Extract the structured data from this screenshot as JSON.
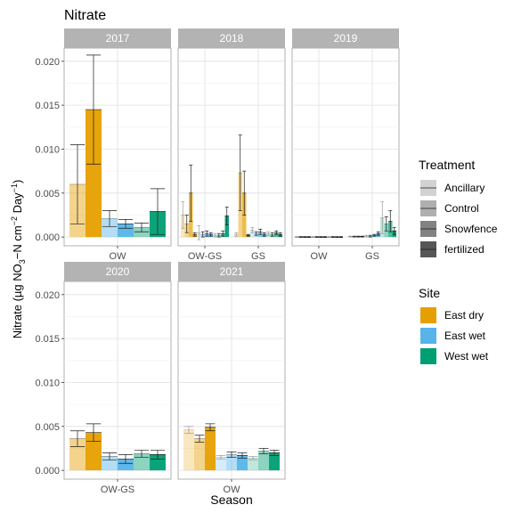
{
  "chart_data": {
    "type": "bar",
    "title": "Nitrate",
    "xlabel": "Season",
    "ylabel": {
      "prefix": "Nitrate (µg NO",
      "sub1": "3",
      "mid": "−N cm",
      "sup1": "−2",
      "mid2": " Day",
      "sup2": "−1",
      "suffix": ")"
    },
    "ylim": [
      -0.001,
      0.0215
    ],
    "y_ticks": [
      "0.000",
      "0.005",
      "0.010",
      "0.015",
      "0.020"
    ],
    "y_tick_values": [
      0,
      0.005,
      0.01,
      0.015,
      0.02
    ],
    "grid": true,
    "legend_placement": "right",
    "treatment_legend": {
      "title": "Treatment",
      "items": [
        {
          "label": "Ancillary",
          "alpha": 0.25
        },
        {
          "label": "Control",
          "alpha": 0.45
        },
        {
          "label": "Snowfence",
          "alpha": 0.7
        },
        {
          "label": "fertilized",
          "alpha": 0.95
        }
      ]
    },
    "site_legend": {
      "title": "Site",
      "items": [
        {
          "label": "East dry",
          "color": "#E69F00"
        },
        {
          "label": "East wet",
          "color": "#56B4E9"
        },
        {
          "label": "West wet",
          "color": "#009E73"
        }
      ]
    },
    "panels": [
      {
        "label": "2017",
        "seasons": [
          "OW"
        ],
        "groups": [
          {
            "season": "OW",
            "site": "East dry",
            "bars": [
              {
                "treatment": "Control",
                "value": 0.006,
                "err": 0.0045
              },
              {
                "treatment": "fertilized",
                "value": 0.0145,
                "err": 0.0062
              }
            ]
          },
          {
            "season": "OW",
            "site": "East wet",
            "bars": [
              {
                "treatment": "Control",
                "value": 0.0021,
                "err": 0.0009
              },
              {
                "treatment": "fertilized",
                "value": 0.0015,
                "err": 0.0005
              }
            ]
          },
          {
            "season": "OW",
            "site": "West wet",
            "bars": [
              {
                "treatment": "Control",
                "value": 0.0011,
                "err": 0.0005
              },
              {
                "treatment": "fertilized",
                "value": 0.0029,
                "err": 0.0026
              }
            ]
          }
        ]
      },
      {
        "label": "2018",
        "seasons": [
          "OW-GS",
          "GS"
        ],
        "groups": [
          {
            "season": "OW-GS",
            "site": "East dry",
            "bars": [
              {
                "treatment": "Ancillary",
                "value": 0.0025,
                "err": 0.0015
              },
              {
                "treatment": "Control",
                "value": 0.0015,
                "err": 0.001
              },
              {
                "treatment": "Snowfence",
                "value": 0.005,
                "err": 0.0032
              },
              {
                "treatment": "fertilized",
                "value": 0.0003,
                "err": 0.0002
              }
            ]
          },
          {
            "season": "OW-GS",
            "site": "East wet",
            "bars": [
              {
                "treatment": "Ancillary",
                "value": 0.0005,
                "err": 0.0008
              },
              {
                "treatment": "Control",
                "value": 0.0003,
                "err": 0.0003
              },
              {
                "treatment": "Snowfence",
                "value": 0.0004,
                "err": 0.0003
              },
              {
                "treatment": "fertilized",
                "value": 0.0003,
                "err": 0.0002
              }
            ]
          },
          {
            "season": "OW-GS",
            "site": "West wet",
            "bars": [
              {
                "treatment": "Ancillary",
                "value": 0.0002,
                "err": 0.0002
              },
              {
                "treatment": "Control",
                "value": 0.0002,
                "err": 0.0002
              },
              {
                "treatment": "Snowfence",
                "value": 0.0004,
                "err": 0.0003
              },
              {
                "treatment": "fertilized",
                "value": 0.0024,
                "err": 0.001
              }
            ]
          },
          {
            "season": "GS",
            "site": "East dry",
            "bars": [
              {
                "treatment": "Ancillary",
                "value": 0.0003,
                "err": 0.0002
              },
              {
                "treatment": "Control",
                "value": 0.0073,
                "err": 0.0043
              },
              {
                "treatment": "Snowfence",
                "value": 0.005,
                "err": 0.0025
              },
              {
                "treatment": "fertilized",
                "value": 0.0002,
                "err": 0.0001
              }
            ]
          },
          {
            "season": "GS",
            "site": "East wet",
            "bars": [
              {
                "treatment": "Ancillary",
                "value": 0.0008,
                "err": 0.0003
              },
              {
                "treatment": "Control",
                "value": 0.0004,
                "err": 0.0002
              },
              {
                "treatment": "Snowfence",
                "value": 0.0006,
                "err": 0.0003
              },
              {
                "treatment": "fertilized",
                "value": 0.0003,
                "err": 0.0002
              }
            ]
          },
          {
            "season": "GS",
            "site": "West wet",
            "bars": [
              {
                "treatment": "Ancillary",
                "value": 0.0004,
                "err": 0.0002
              },
              {
                "treatment": "Control",
                "value": 0.0003,
                "err": 0.0002
              },
              {
                "treatment": "Snowfence",
                "value": 0.0005,
                "err": 0.0002
              },
              {
                "treatment": "fertilized",
                "value": 0.0003,
                "err": 0.0002
              }
            ]
          }
        ]
      },
      {
        "label": "2019",
        "seasons": [
          "OW",
          "GS"
        ],
        "groups": [
          {
            "season": "OW",
            "site": "East dry",
            "bars": [
              {
                "treatment": "Ancillary",
                "value": 0.0,
                "err": 5e-05
              },
              {
                "treatment": "Control",
                "value": 0.0,
                "err": 5e-05
              },
              {
                "treatment": "Snowfence",
                "value": 0.0,
                "err": 5e-05
              },
              {
                "treatment": "fertilized",
                "value": 0.0,
                "err": 5e-05
              }
            ]
          },
          {
            "season": "OW",
            "site": "East wet",
            "bars": [
              {
                "treatment": "Ancillary",
                "value": 0.0,
                "err": 5e-05
              },
              {
                "treatment": "Control",
                "value": 0.0,
                "err": 5e-05
              },
              {
                "treatment": "Snowfence",
                "value": 0.0,
                "err": 5e-05
              },
              {
                "treatment": "fertilized",
                "value": 0.0,
                "err": 5e-05
              }
            ]
          },
          {
            "season": "OW",
            "site": "West wet",
            "bars": [
              {
                "treatment": "Ancillary",
                "value": 0.0,
                "err": 5e-05
              },
              {
                "treatment": "Control",
                "value": 0.0,
                "err": 5e-05
              },
              {
                "treatment": "Snowfence",
                "value": 0.0,
                "err": 5e-05
              },
              {
                "treatment": "fertilized",
                "value": 0.0,
                "err": 5e-05
              }
            ]
          },
          {
            "season": "GS",
            "site": "East dry",
            "bars": [
              {
                "treatment": "Ancillary",
                "value": 5e-05,
                "err": 5e-05
              },
              {
                "treatment": "Control",
                "value": 5e-05,
                "err": 5e-05
              },
              {
                "treatment": "Snowfence",
                "value": 5e-05,
                "err": 5e-05
              },
              {
                "treatment": "fertilized",
                "value": 5e-05,
                "err": 5e-05
              }
            ]
          },
          {
            "season": "GS",
            "site": "East wet",
            "bars": [
              {
                "treatment": "Ancillary",
                "value": 0.0001,
                "err": 0.0001
              },
              {
                "treatment": "Control",
                "value": 0.0001,
                "err": 0.0001
              },
              {
                "treatment": "Snowfence",
                "value": 0.0002,
                "err": 0.0001
              },
              {
                "treatment": "fertilized",
                "value": 0.0004,
                "err": 0.0002
              }
            ]
          },
          {
            "season": "GS",
            "site": "West wet",
            "bars": [
              {
                "treatment": "Ancillary",
                "value": 0.0022,
                "err": 0.0018
              },
              {
                "treatment": "Control",
                "value": 0.0015,
                "err": 0.0008
              },
              {
                "treatment": "Snowfence",
                "value": 0.0018,
                "err": 0.0012
              },
              {
                "treatment": "fertilized",
                "value": 0.0007,
                "err": 0.0004
              }
            ]
          }
        ]
      },
      {
        "label": "2020",
        "seasons": [
          "OW-GS"
        ],
        "groups": [
          {
            "season": "OW-GS",
            "site": "East dry",
            "bars": [
              {
                "treatment": "Control",
                "value": 0.0036,
                "err": 0.0009
              },
              {
                "treatment": "fertilized",
                "value": 0.0043,
                "err": 0.001
              }
            ]
          },
          {
            "season": "OW-GS",
            "site": "East wet",
            "bars": [
              {
                "treatment": "Control",
                "value": 0.0016,
                "err": 0.0004
              },
              {
                "treatment": "fertilized",
                "value": 0.0013,
                "err": 0.0005
              }
            ]
          },
          {
            "season": "OW-GS",
            "site": "West wet",
            "bars": [
              {
                "treatment": "Control",
                "value": 0.0019,
                "err": 0.0004
              },
              {
                "treatment": "fertilized",
                "value": 0.0018,
                "err": 0.0005
              }
            ]
          }
        ]
      },
      {
        "label": "2021",
        "seasons": [
          "OW"
        ],
        "groups": [
          {
            "season": "OW",
            "site": "East dry",
            "bars": [
              {
                "treatment": "Ancillary",
                "value": 0.0046,
                "err": 0.0004
              },
              {
                "treatment": "Control",
                "value": 0.0036,
                "err": 0.0004
              },
              {
                "treatment": "fertilized",
                "value": 0.0049,
                "err": 0.0004
              }
            ]
          },
          {
            "season": "OW",
            "site": "East wet",
            "bars": [
              {
                "treatment": "Ancillary",
                "value": 0.0015,
                "err": 0.0002
              },
              {
                "treatment": "Control",
                "value": 0.0018,
                "err": 0.0003
              },
              {
                "treatment": "fertilized",
                "value": 0.0017,
                "err": 0.0003
              }
            ]
          },
          {
            "season": "OW",
            "site": "West wet",
            "bars": [
              {
                "treatment": "Ancillary",
                "value": 0.0014,
                "err": 0.0002
              },
              {
                "treatment": "Control",
                "value": 0.0022,
                "err": 0.0003
              },
              {
                "treatment": "fertilized",
                "value": 0.002,
                "err": 0.0003
              }
            ]
          }
        ]
      }
    ]
  }
}
